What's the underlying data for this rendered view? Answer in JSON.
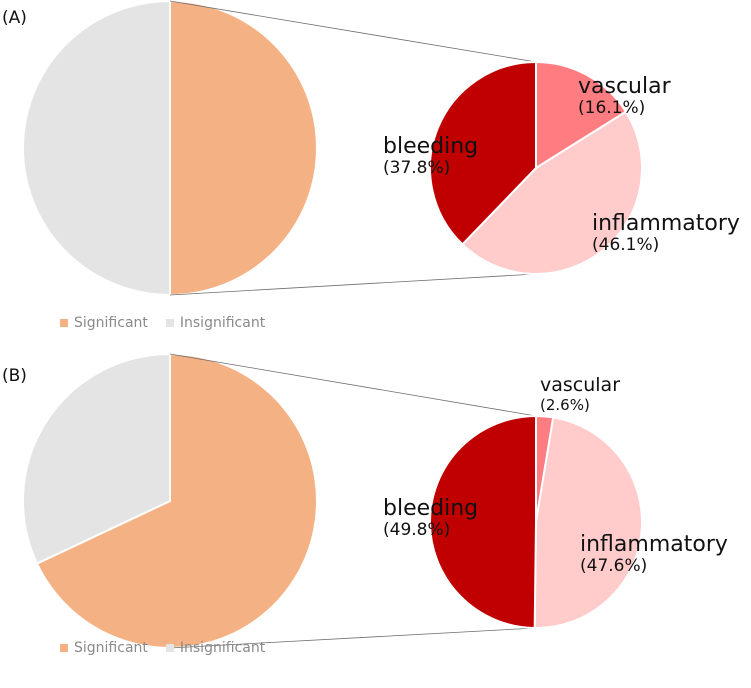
{
  "colors": {
    "significant": "#f4b183",
    "insignificant": "#e4e4e4",
    "bleeding": "#c00000",
    "vascular": "#ff7c80",
    "inflammatory": "#ffcbcb",
    "connector": "#6e6e6e"
  },
  "chart_data": [
    {
      "type": "pie",
      "panel_label": "(A)",
      "main": {
        "slices": [
          {
            "name": "Significant",
            "value": 50.0
          },
          {
            "name": "Insignificant",
            "value": 50.0
          }
        ]
      },
      "detail": {
        "slices": [
          {
            "name": "vascular",
            "value": 16.1,
            "label": "(16.1%)"
          },
          {
            "name": "inflammatory",
            "value": 46.1,
            "label": "(46.1%)"
          },
          {
            "name": "bleeding",
            "value": 37.8,
            "label": "(37.8%)"
          }
        ]
      },
      "legend": [
        "Significant",
        "Insignificant"
      ]
    },
    {
      "type": "pie",
      "panel_label": "(B)",
      "main": {
        "slices": [
          {
            "name": "Significant",
            "value": 68.0
          },
          {
            "name": "Insignificant",
            "value": 32.0
          }
        ]
      },
      "detail": {
        "slices": [
          {
            "name": "vascular",
            "value": 2.6,
            "label": "(2.6%)"
          },
          {
            "name": "inflammatory",
            "value": 47.6,
            "label": "(47.6%)"
          },
          {
            "name": "bleeding",
            "value": 49.8,
            "label": "(49.8%)"
          }
        ]
      },
      "legend": [
        "Significant",
        "Insignificant"
      ]
    }
  ]
}
